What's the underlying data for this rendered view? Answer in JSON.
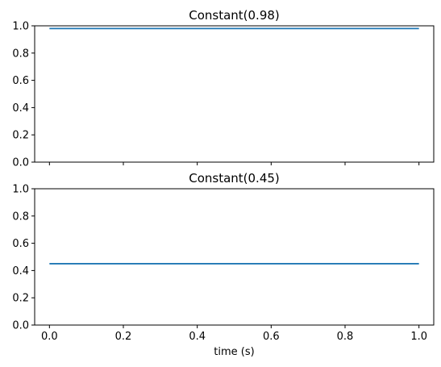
{
  "chart_data": [
    {
      "type": "line",
      "title": "Constant(0.98)",
      "xlabel": "",
      "ylabel": "",
      "xlim": [
        -0.04,
        1.04
      ],
      "ylim": [
        0,
        1
      ],
      "xticks": [
        0.0,
        0.2,
        0.4,
        0.6,
        0.8,
        1.0
      ],
      "xtick_labels_visible": false,
      "yticks": [
        "0.0",
        "0.2",
        "0.4",
        "0.6",
        "0.8",
        "1.0"
      ],
      "series": [
        {
          "x": [
            0.0,
            1.0
          ],
          "y": [
            0.98,
            0.98
          ],
          "color": "#1f77b4"
        }
      ]
    },
    {
      "type": "line",
      "title": "Constant(0.45)",
      "xlabel": "time (s)",
      "ylabel": "",
      "xlim": [
        -0.04,
        1.04
      ],
      "ylim": [
        0,
        1
      ],
      "xticks": [
        "0.0",
        "0.2",
        "0.4",
        "0.6",
        "0.8",
        "1.0"
      ],
      "xtick_labels_visible": true,
      "yticks": [
        "0.0",
        "0.2",
        "0.4",
        "0.6",
        "0.8",
        "1.0"
      ],
      "series": [
        {
          "x": [
            0.0,
            1.0
          ],
          "y": [
            0.45,
            0.45
          ],
          "color": "#1f77b4"
        }
      ]
    }
  ]
}
